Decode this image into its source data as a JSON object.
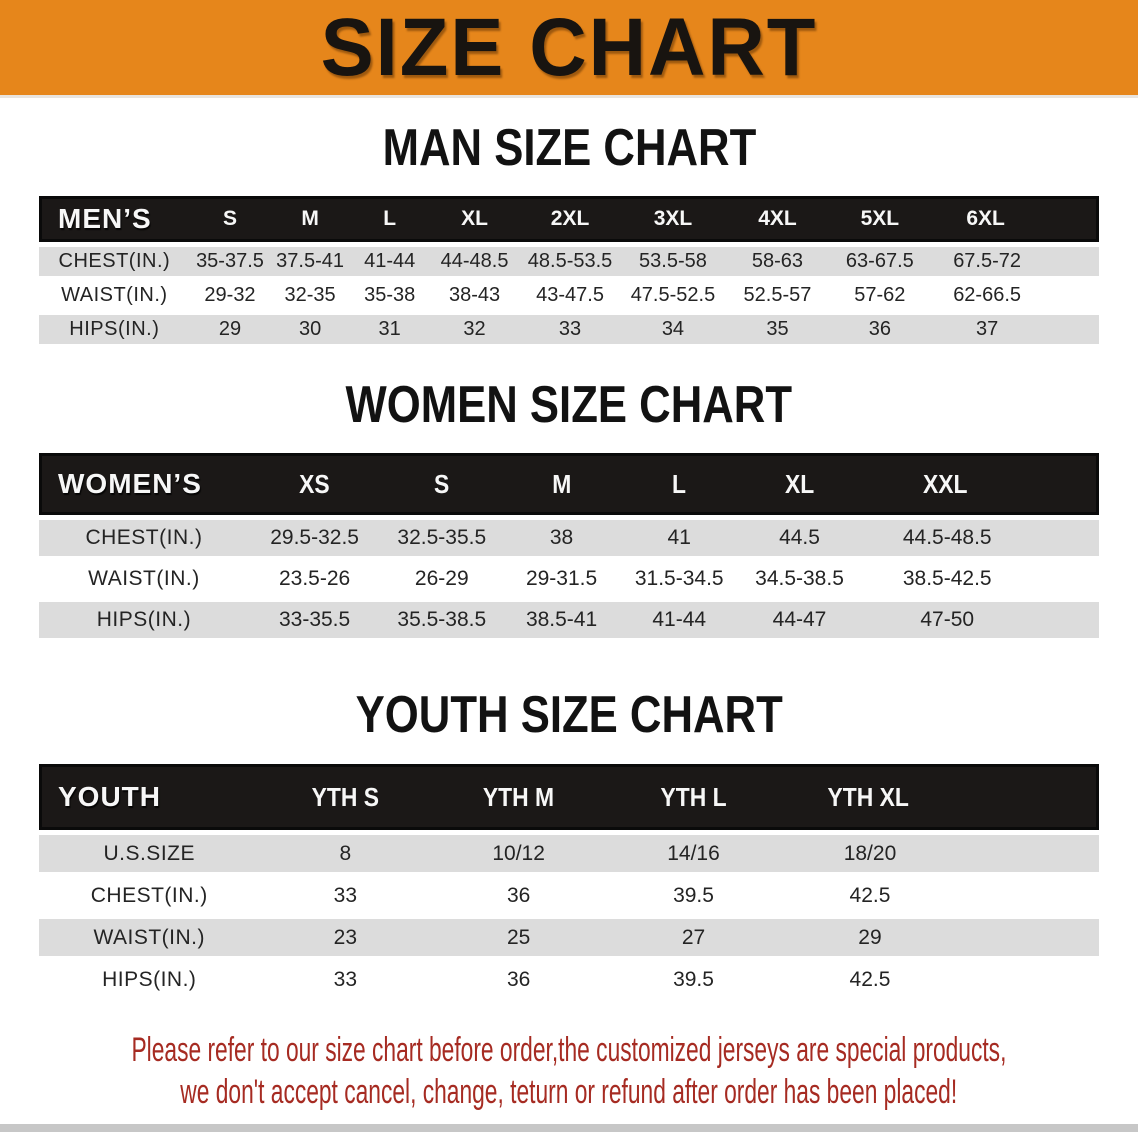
{
  "banner": {
    "title": "SIZE CHART",
    "bg_color": "#E6861B"
  },
  "sections": [
    {
      "id": "men",
      "heading": "MAN SIZE CHART",
      "table": {
        "group_label": "MEN’S",
        "columns": [
          "S",
          "M",
          "L",
          "XL",
          "2XL",
          "3XL",
          "4XL",
          "5XL",
          "6XL"
        ],
        "rows": [
          {
            "label": "CHEST(IN.)",
            "values": [
              "35-37.5",
              "37.5-41",
              "41-44",
              "44-48.5",
              "48.5-53.5",
              "53.5-58",
              "58-63",
              "63-67.5",
              "67.5-72"
            ]
          },
          {
            "label": "WAIST(IN.)",
            "values": [
              "29-32",
              "32-35",
              "35-38",
              "38-43",
              "43-47.5",
              "47.5-52.5",
              "52.5-57",
              "57-62",
              "62-66.5"
            ]
          },
          {
            "label": "HIPS(IN.)",
            "values": [
              "29",
              "30",
              "31",
              "32",
              "33",
              "34",
              "35",
              "36",
              "37"
            ]
          }
        ]
      }
    },
    {
      "id": "women",
      "heading": "WOMEN SIZE CHART",
      "table": {
        "group_label": "WOMEN’S",
        "columns": [
          "XS",
          "S",
          "M",
          "L",
          "XL",
          "XXL"
        ],
        "rows": [
          {
            "label": "CHEST(IN.)",
            "values": [
              "29.5-32.5",
              "32.5-35.5",
              "38",
              "41",
              "44.5",
              "44.5-48.5"
            ]
          },
          {
            "label": "WAIST(IN.)",
            "values": [
              "23.5-26",
              "26-29",
              "29-31.5",
              "31.5-34.5",
              "34.5-38.5",
              "38.5-42.5"
            ]
          },
          {
            "label": "HIPS(IN.)",
            "values": [
              "33-35.5",
              "35.5-38.5",
              "38.5-41",
              "41-44",
              "44-47",
              "47-50"
            ]
          }
        ]
      }
    },
    {
      "id": "youth",
      "heading": "YOUTH SIZE CHART",
      "table": {
        "group_label": "YOUTH",
        "columns": [
          "YTH S",
          "YTH M",
          "YTH L",
          "YTH XL"
        ],
        "rows": [
          {
            "label": "U.S.SIZE",
            "values": [
              "8",
              "10/12",
              "14/16",
              "18/20"
            ]
          },
          {
            "label": "CHEST(IN.)",
            "values": [
              "33",
              "36",
              "39.5",
              "42.5"
            ]
          },
          {
            "label": "WAIST(IN.)",
            "values": [
              "23",
              "25",
              "27",
              "29"
            ]
          },
          {
            "label": "HIPS(IN.)",
            "values": [
              "33",
              "36",
              "39.5",
              "42.5"
            ]
          }
        ]
      }
    }
  ],
  "disclaimer": {
    "color": "#A62B22",
    "lines": [
      "Please refer to our size chart before order,the customized jerseys are special products,",
      "we don't accept cancel, change, teturn or refund after order has been placed!"
    ]
  }
}
